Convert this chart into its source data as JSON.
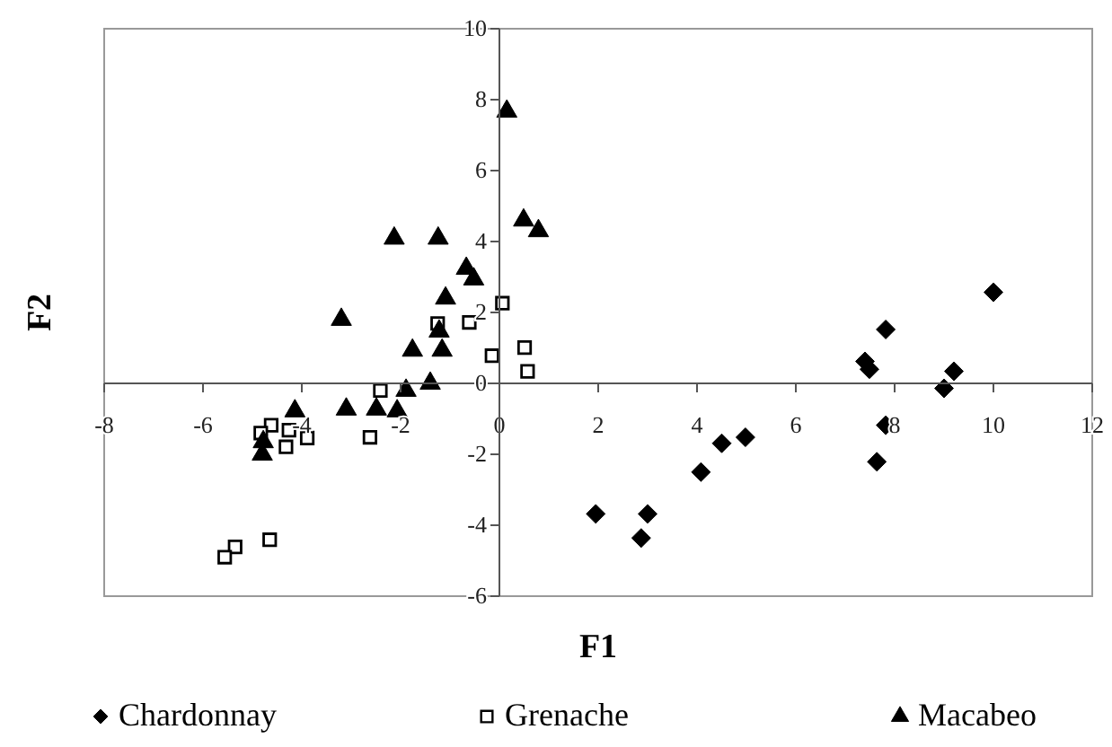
{
  "chart_data": {
    "type": "scatter",
    "xlabel": "F1",
    "ylabel": "F2",
    "xlim": [
      -8,
      12
    ],
    "ylim": [
      -6,
      10
    ],
    "xticks": [
      -8,
      -6,
      -4,
      -2,
      0,
      2,
      4,
      6,
      8,
      10,
      12
    ],
    "yticks": [
      -6,
      -4,
      -2,
      0,
      2,
      4,
      6,
      8,
      10
    ],
    "grid": false,
    "legend": "bottom",
    "series": [
      {
        "name": "Chardonnay",
        "color": "#000000",
        "marker": "diamond",
        "x": [
          1.95,
          3.0,
          2.87,
          4.08,
          4.5,
          4.98,
          7.4,
          7.49,
          7.82,
          7.82,
          7.64,
          9.0,
          9.2,
          10.0
        ],
        "values": [
          -3.68,
          -3.68,
          -4.36,
          -2.5,
          -1.69,
          -1.52,
          0.62,
          0.4,
          1.52,
          -1.18,
          -2.21,
          -0.14,
          0.34,
          2.57
        ]
      },
      {
        "name": "Grenache",
        "color": "#000000",
        "marker": "square",
        "x": [
          0.06,
          -1.25,
          -0.61,
          -0.15,
          0.51,
          0.57,
          -2.41,
          -2.62,
          -3.89,
          -4.26,
          -4.32,
          -4.62,
          -4.83,
          -4.65,
          -5.35,
          -5.56
        ],
        "values": [
          2.26,
          1.69,
          1.72,
          0.78,
          1.01,
          0.34,
          -0.2,
          -1.52,
          -1.54,
          -1.32,
          -1.79,
          -1.18,
          -1.4,
          -4.41,
          -4.61,
          -4.9
        ]
      },
      {
        "name": "Macabeo",
        "color": "#000000",
        "marker": "triangle",
        "x": [
          0.15,
          0.49,
          0.79,
          -2.13,
          -1.24,
          -0.67,
          -0.52,
          -1.09,
          -3.2,
          -1.22,
          -1.76,
          -1.16,
          -1.4,
          -1.89,
          -2.49,
          -2.07,
          -3.1,
          -4.14,
          -4.8,
          -4.78
        ],
        "values": [
          7.67,
          4.6,
          4.3,
          4.09,
          4.09,
          3.24,
          2.94,
          2.4,
          1.8,
          1.47,
          0.93,
          0.93,
          0,
          -0.2,
          -0.73,
          -0.78,
          -0.73,
          -0.78,
          -2.0,
          -1.65
        ]
      }
    ]
  }
}
